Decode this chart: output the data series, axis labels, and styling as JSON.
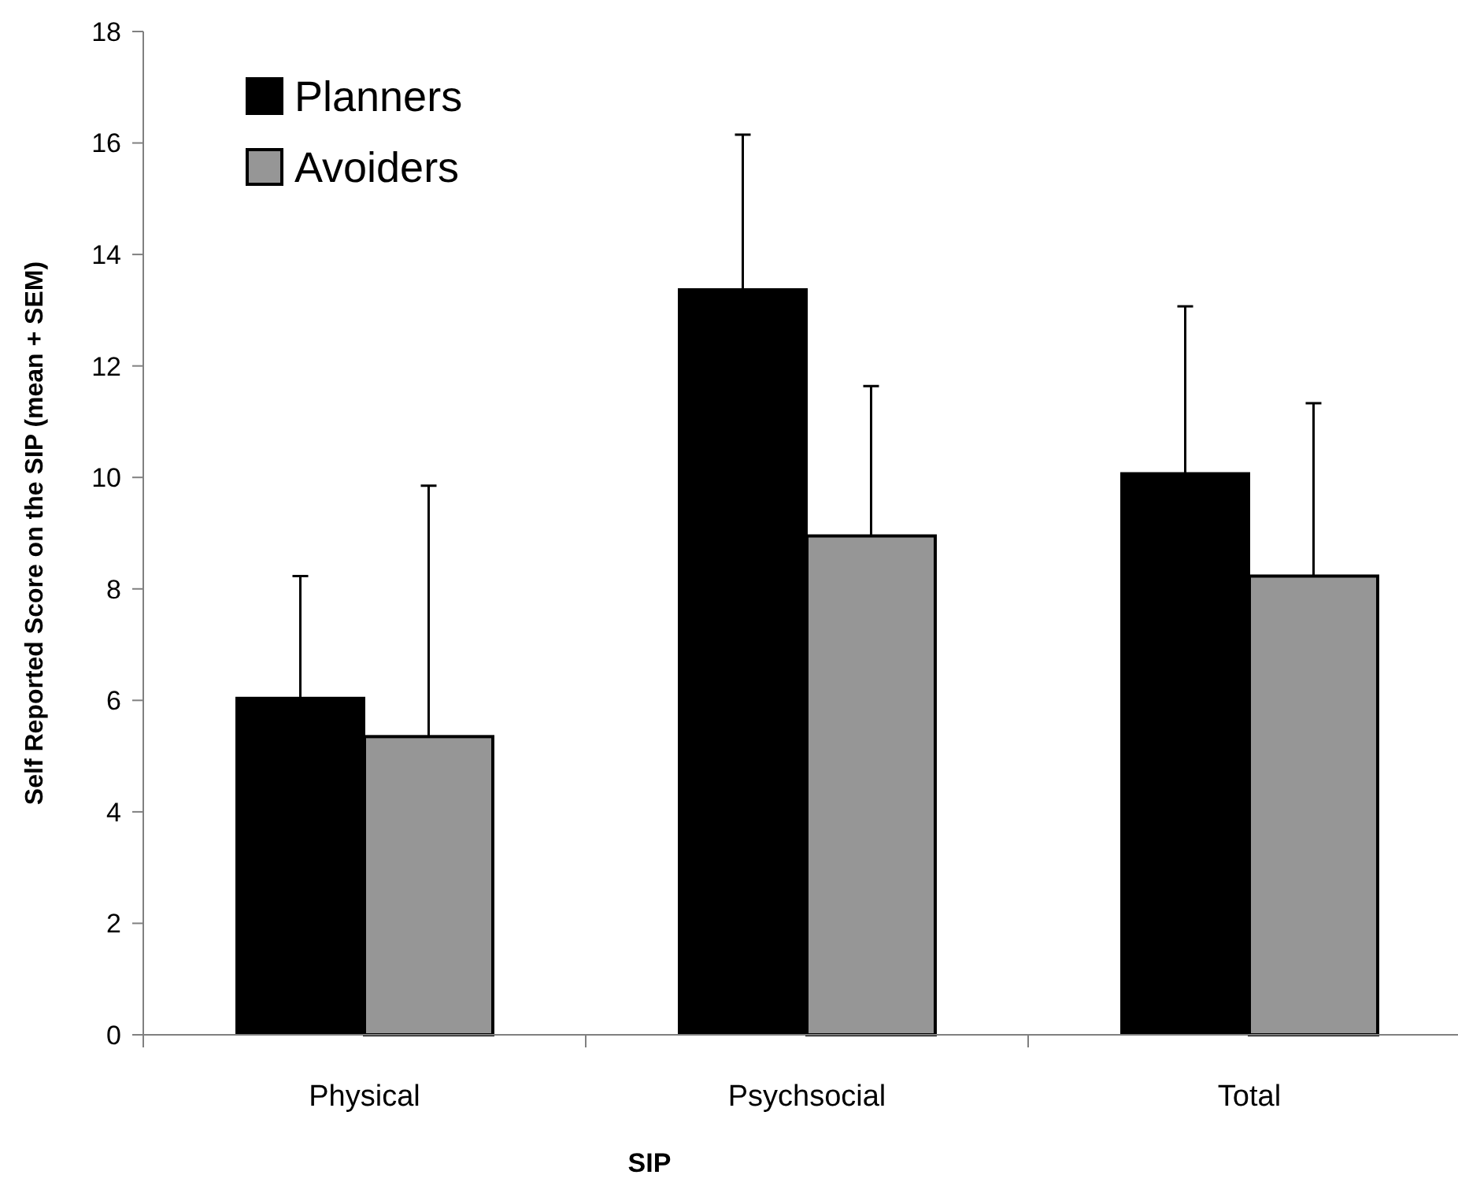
{
  "chart_data": {
    "type": "bar",
    "xlabel": "SIP",
    "ylabel": "Self Reported Score on the SIP (mean + SEM)",
    "categories": [
      "Physical",
      "Psychsocial",
      "Total"
    ],
    "series": [
      {
        "name": "Planners",
        "color": "#000000",
        "values": [
          6.05,
          13.38,
          10.08
        ],
        "errors": [
          [
            6.05,
            8.23
          ],
          [
            13.38,
            16.15
          ],
          [
            10.08,
            13.07
          ]
        ]
      },
      {
        "name": "Avoiders",
        "color": "#969696",
        "values": [
          5.35,
          8.95,
          8.23
        ],
        "errors": [
          [
            5.35,
            9.85
          ],
          [
            8.95,
            11.64
          ],
          [
            8.23,
            11.33
          ]
        ]
      }
    ],
    "ylim": [
      0,
      18
    ],
    "yticks": [
      0,
      2,
      4,
      6,
      8,
      10,
      12,
      14,
      16,
      18
    ],
    "legend": "top left"
  }
}
